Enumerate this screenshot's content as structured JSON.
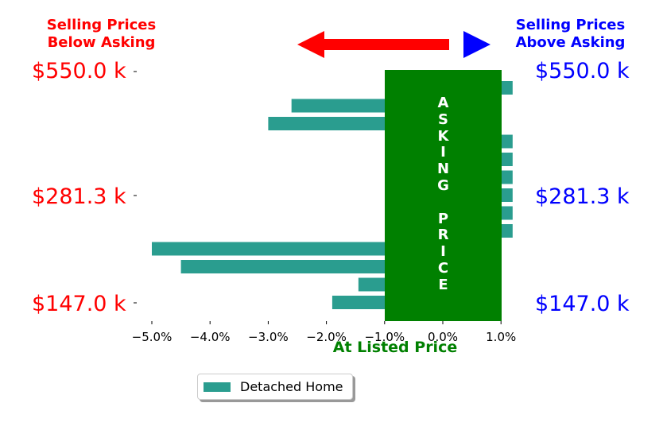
{
  "headers": {
    "left": "Selling Prices\nBelow Asking",
    "right": "Selling Prices\nAbove Asking"
  },
  "colors": {
    "bar": "#2a9d8f",
    "asking_box": "#008000",
    "left_text": "#ff0000",
    "right_text": "#0000ff",
    "xlabel": "#008000"
  },
  "icons": [
    "left-arrow-icon",
    "right-triangle-icon"
  ],
  "price_labels": {
    "top": "$550.0 k",
    "middle": "$281.3 k",
    "bottom": "$147.0 k"
  },
  "asking_label": "A\nS\nK\nI\nN\nG\n\nP\nR\nI\nC\nE",
  "legend": {
    "label": "Detached Home"
  },
  "chart_data": {
    "type": "bar",
    "orientation": "horizontal",
    "xlabel": "At Listed Price",
    "xlim": [
      -5.5,
      1.3
    ],
    "xticks": [
      -5.0,
      -4.0,
      -3.0,
      -2.0,
      -1.0,
      0.0,
      1.0
    ],
    "xtick_labels": [
      "−5.0%",
      "−4.0%",
      "−3.0%",
      "−2.0%",
      "−1.0%",
      "0.0%",
      "1.0%"
    ],
    "series": [
      {
        "name": "Detached Home",
        "values": [
          1.2,
          -2.6,
          -3.0,
          1.2,
          1.2,
          1.2,
          1.2,
          1.2,
          1.2,
          -5.0,
          -4.5,
          -1.45,
          -1.9
        ]
      }
    ],
    "grid": false,
    "legend_position": "bottom-center"
  }
}
